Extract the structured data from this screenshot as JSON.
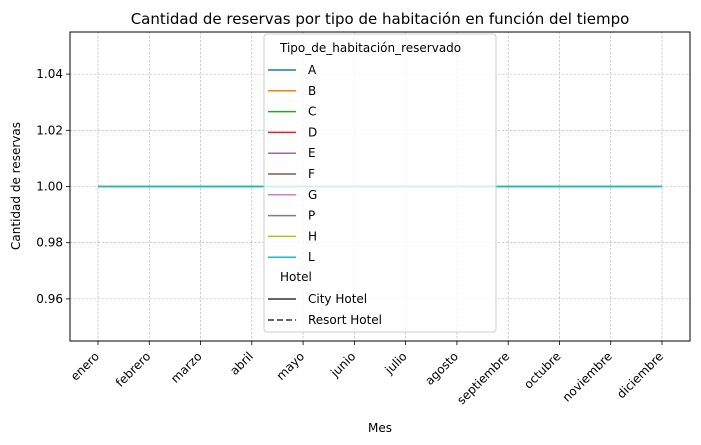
{
  "chart_data": {
    "type": "line",
    "title": "Cantidad de reservas por tipo de habitación en función del tiempo",
    "xlabel": "Mes",
    "ylabel": "Cantidad de reservas",
    "categories": [
      "enero",
      "febrero",
      "marzo",
      "abril",
      "mayo",
      "junio",
      "julio",
      "agosto",
      "septiembre",
      "octubre",
      "noviembre",
      "diciembre"
    ],
    "ylim": [
      0.945,
      1.055
    ],
    "yticks": [
      0.96,
      0.98,
      1.0,
      1.02,
      1.04
    ],
    "ytick_labels": [
      "0.96",
      "0.98",
      "1.00",
      "1.02",
      "1.04"
    ],
    "grid": true,
    "legend_position": "top-center",
    "legend": {
      "hue_title": "Tipo_de_habitación_reservado",
      "style_title": "Hotel",
      "styles": [
        {
          "name": "City Hotel",
          "dash": "solid"
        },
        {
          "name": "Resort Hotel",
          "dash": "dashed"
        }
      ]
    },
    "series": [
      {
        "name": "A",
        "color": "#1f77b4",
        "values": [
          1,
          1,
          1,
          1,
          1,
          1,
          1,
          1,
          1,
          1,
          1,
          1
        ]
      },
      {
        "name": "B",
        "color": "#ff7f0e",
        "values": [
          1,
          1,
          1,
          1,
          1,
          1,
          1,
          1,
          1,
          1,
          1,
          1
        ]
      },
      {
        "name": "C",
        "color": "#2ca02c",
        "values": [
          1,
          1,
          1,
          1,
          1,
          1,
          1,
          1,
          1,
          1,
          1,
          1
        ]
      },
      {
        "name": "D",
        "color": "#d62728",
        "values": [
          1,
          1,
          1,
          1,
          1,
          1,
          1,
          1,
          1,
          1,
          1,
          1
        ]
      },
      {
        "name": "E",
        "color": "#9467bd",
        "values": [
          1,
          1,
          1,
          1,
          1,
          1,
          1,
          1,
          1,
          1,
          1,
          1
        ]
      },
      {
        "name": "F",
        "color": "#8c564b",
        "values": [
          1,
          1,
          1,
          1,
          1,
          1,
          1,
          1,
          1,
          1,
          1,
          1
        ]
      },
      {
        "name": "G",
        "color": "#e377c2",
        "values": [
          1,
          1,
          1,
          1,
          1,
          1,
          1,
          1,
          1,
          1,
          1,
          1
        ]
      },
      {
        "name": "P",
        "color": "#7f7f7f",
        "values": [
          1,
          1,
          1,
          1,
          1,
          1,
          1,
          1,
          1,
          1,
          1,
          1
        ]
      },
      {
        "name": "H",
        "color": "#bcbd22",
        "values": [
          1,
          1,
          1,
          1,
          1,
          1,
          1,
          1,
          1,
          1,
          1,
          1
        ]
      },
      {
        "name": "L",
        "color": "#17becf",
        "values": [
          1,
          1,
          1,
          1,
          1,
          1,
          1,
          1,
          1,
          1,
          1,
          1
        ]
      }
    ]
  }
}
